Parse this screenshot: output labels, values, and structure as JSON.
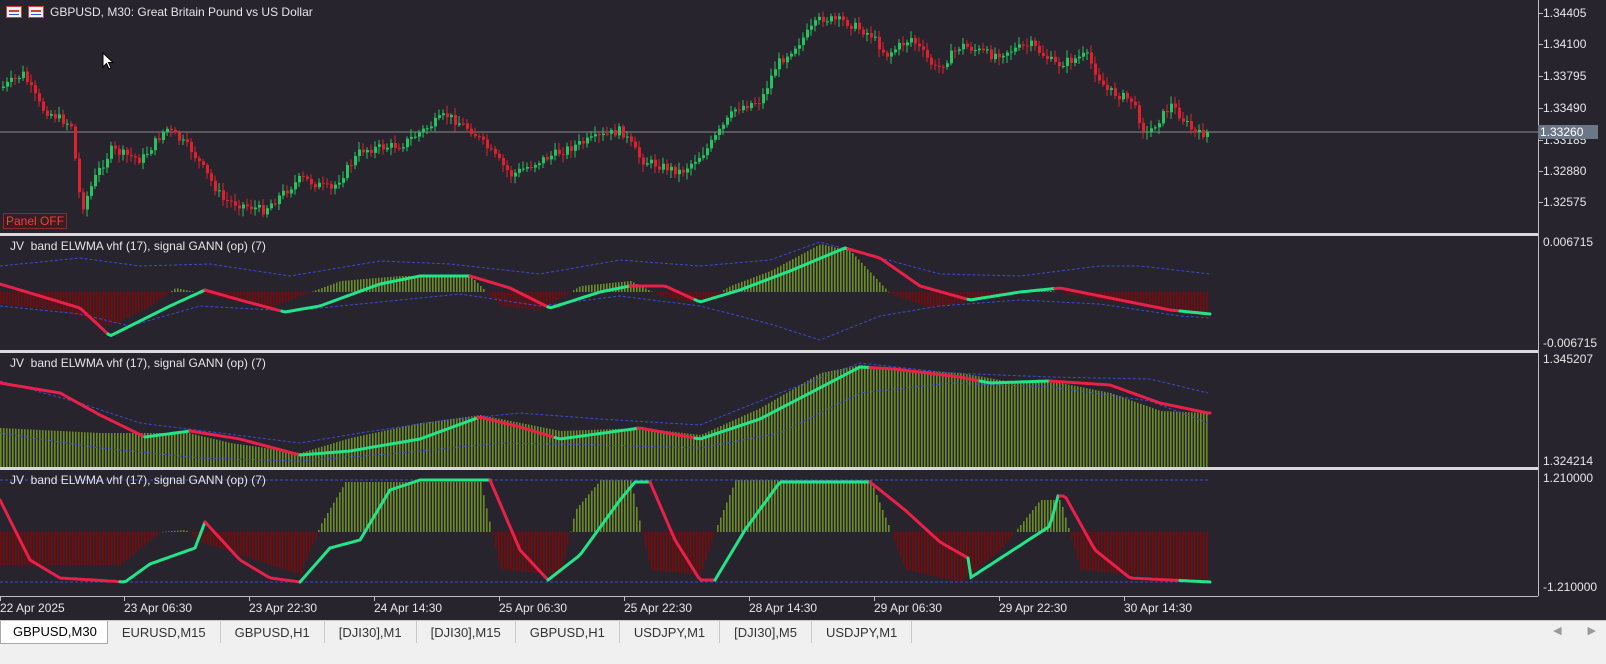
{
  "chart": {
    "title": "GBPUSD, M30:  Great Britain Pound vs US Dollar",
    "panel_button": "Panel  OFF",
    "current_price": "1.33260",
    "price_axis": [
      "1.34405",
      "1.34100",
      "1.33795",
      "1.33490",
      "1.33185",
      "1.32880",
      "1.32575"
    ],
    "time_axis": [
      "22 Apr 2025",
      "23 Apr 06:30",
      "23 Apr 22:30",
      "24 Apr 14:30",
      "25 Apr 06:30",
      "25 Apr 22:30",
      "28 Apr 14:30",
      "29 Apr 06:30",
      "29 Apr 22:30",
      "30 Apr 14:30"
    ],
    "colors": {
      "background": "#27242d",
      "bull": "#22c55e",
      "bear": "#e02030",
      "signal_up": "#22e58a",
      "signal_down": "#e8204a",
      "hist_up": "#6b8e23",
      "hist_down": "#7a0a0a",
      "band": "#3a4bd0"
    }
  },
  "indicators": [
    {
      "label": "JV  band ELWMA vhf (17), signal GANN (op) (7)",
      "scale_top": "0.006715",
      "scale_bottom": "-0.006715"
    },
    {
      "label": "JV  band ELWMA vhf (17), signal GANN (op) (7)",
      "scale_top": "1.345207",
      "scale_bottom": "1.324214"
    },
    {
      "label": "JV  band ELWMA vhf (17), signal GANN (op) (7)",
      "scale_top": "1.210000",
      "scale_bottom": "-1.210000"
    }
  ],
  "tabs": [
    {
      "label": "GBPUSD,M30",
      "active": true
    },
    {
      "label": "EURUSD,M15",
      "active": false
    },
    {
      "label": "GBPUSD,H1",
      "active": false
    },
    {
      "label": "[DJI30],M1",
      "active": false
    },
    {
      "label": "[DJI30],M15",
      "active": false
    },
    {
      "label": "GBPUSD,H1",
      "active": false
    },
    {
      "label": "USDJPY,M1",
      "active": false
    },
    {
      "label": "[DJI30],M5",
      "active": false
    },
    {
      "label": "USDJPY,M1",
      "active": false
    }
  ],
  "tab_scroll": {
    "left_icon": "chevron-left-icon",
    "right_icon": "chevron-right-icon"
  }
}
